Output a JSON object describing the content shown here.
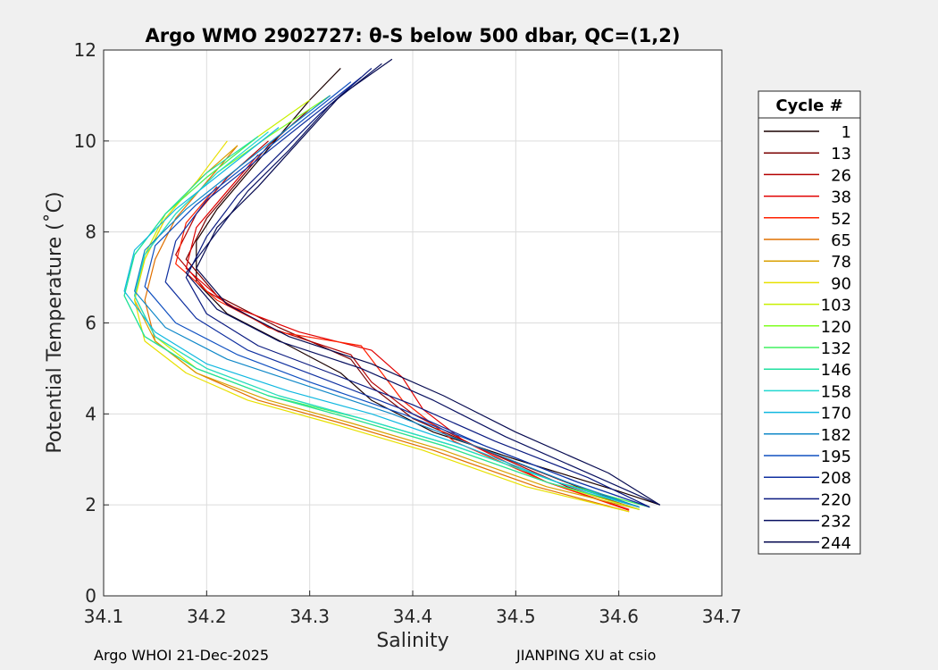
{
  "chart_data": {
    "type": "line",
    "title": "Argo WMO 2902727: θ-S below 500 dbar,  QC=(1,2)",
    "xlabel": "Salinity",
    "ylabel": "Potential Temperature (˚C)",
    "xlim": [
      34.1,
      34.7
    ],
    "ylim": [
      0,
      12
    ],
    "xticks": [
      34.1,
      34.2,
      34.3,
      34.4,
      34.5,
      34.6,
      34.7
    ],
    "yticks": [
      0,
      2,
      4,
      6,
      8,
      10,
      12
    ],
    "xtick_labels": [
      "34.1",
      "34.2",
      "34.3",
      "34.4",
      "34.5",
      "34.6",
      "34.7"
    ],
    "ytick_labels": [
      "0",
      "2",
      "4",
      "6",
      "8",
      "10",
      "12"
    ],
    "grid": true,
    "legend": {
      "title": "Cycle #",
      "placement": "outside-right",
      "entries": [
        {
          "label": "1",
          "color": "#1a0000"
        },
        {
          "label": "13",
          "color": "#7a0000"
        },
        {
          "label": "26",
          "color": "#b30000"
        },
        {
          "label": "38",
          "color": "#e00000"
        },
        {
          "label": "52",
          "color": "#ff2000"
        },
        {
          "label": "65",
          "color": "#e07000"
        },
        {
          "label": "78",
          "color": "#d9a000"
        },
        {
          "label": "90",
          "color": "#e8e000"
        },
        {
          "label": "103",
          "color": "#c8f000"
        },
        {
          "label": "120",
          "color": "#7fff20"
        },
        {
          "label": "132",
          "color": "#40f060"
        },
        {
          "label": "146",
          "color": "#20e0a0"
        },
        {
          "label": "158",
          "color": "#20d8d0"
        },
        {
          "label": "170",
          "color": "#10b8e0"
        },
        {
          "label": "182",
          "color": "#1088c8"
        },
        {
          "label": "195",
          "color": "#1050c0"
        },
        {
          "label": "208",
          "color": "#1030a0"
        },
        {
          "label": "220",
          "color": "#0a1a80"
        },
        {
          "label": "232",
          "color": "#081060"
        },
        {
          "label": "244",
          "color": "#060a50"
        }
      ]
    },
    "series": [
      {
        "name": "cycle 1",
        "color": "#1a0000",
        "points": [
          [
            34.64,
            2.0
          ],
          [
            34.6,
            2.3
          ],
          [
            34.5,
            3.0
          ],
          [
            34.42,
            3.6
          ],
          [
            34.36,
            4.3
          ],
          [
            34.33,
            4.9
          ],
          [
            34.28,
            5.5
          ],
          [
            34.22,
            6.2
          ],
          [
            34.19,
            6.9
          ],
          [
            34.19,
            7.8
          ],
          [
            34.21,
            8.5
          ],
          [
            34.24,
            9.3
          ],
          [
            34.27,
            10.1
          ],
          [
            34.3,
            10.9
          ],
          [
            34.33,
            11.6
          ]
        ]
      },
      {
        "name": "cycle 13",
        "color": "#7a0000",
        "points": [
          [
            34.62,
            1.95
          ],
          [
            34.56,
            2.4
          ],
          [
            34.47,
            3.2
          ],
          [
            34.4,
            3.9
          ],
          [
            34.36,
            4.6
          ],
          [
            34.34,
            5.2
          ],
          [
            34.27,
            5.9
          ],
          [
            34.21,
            6.6
          ],
          [
            34.18,
            7.4
          ],
          [
            34.2,
            8.3
          ],
          [
            34.23,
            9.1
          ],
          [
            34.26,
            9.9
          ],
          [
            34.3,
            10.7
          ]
        ]
      },
      {
        "name": "cycle 26",
        "color": "#b30000",
        "points": [
          [
            34.62,
            1.9
          ],
          [
            34.55,
            2.4
          ],
          [
            34.46,
            3.3
          ],
          [
            34.4,
            4.0
          ],
          [
            34.36,
            4.7
          ],
          [
            34.34,
            5.3
          ],
          [
            34.26,
            5.9
          ],
          [
            34.2,
            6.7
          ],
          [
            34.17,
            7.5
          ],
          [
            34.19,
            8.4
          ],
          [
            34.22,
            9.2
          ],
          [
            34.26,
            10.0
          ]
        ]
      },
      {
        "name": "cycle 38",
        "color": "#e00000",
        "points": [
          [
            34.61,
            1.9
          ],
          [
            34.53,
            2.5
          ],
          [
            34.45,
            3.4
          ],
          [
            34.41,
            4.1
          ],
          [
            34.39,
            4.8
          ],
          [
            34.36,
            5.4
          ],
          [
            34.29,
            5.8
          ],
          [
            34.22,
            6.4
          ],
          [
            34.18,
            7.2
          ],
          [
            34.19,
            8.1
          ],
          [
            34.22,
            8.9
          ],
          [
            34.25,
            9.7
          ]
        ]
      },
      {
        "name": "cycle 52",
        "color": "#ff2000",
        "points": [
          [
            34.61,
            1.88
          ],
          [
            34.53,
            2.5
          ],
          [
            34.44,
            3.4
          ],
          [
            34.39,
            4.3
          ],
          [
            34.37,
            4.9
          ],
          [
            34.35,
            5.5
          ],
          [
            34.27,
            5.8
          ],
          [
            34.21,
            6.5
          ],
          [
            34.17,
            7.3
          ],
          [
            34.18,
            8.2
          ],
          [
            34.21,
            9.0
          ]
        ]
      },
      {
        "name": "cycle 65",
        "color": "#e07000",
        "points": [
          [
            34.61,
            1.85
          ],
          [
            34.52,
            2.4
          ],
          [
            34.42,
            3.2
          ],
          [
            34.33,
            3.8
          ],
          [
            34.25,
            4.3
          ],
          [
            34.19,
            4.9
          ],
          [
            34.15,
            5.6
          ],
          [
            34.14,
            6.5
          ],
          [
            34.15,
            7.4
          ],
          [
            34.17,
            8.3
          ],
          [
            34.2,
            9.1
          ],
          [
            34.23,
            9.9
          ]
        ]
      },
      {
        "name": "cycle 78",
        "color": "#d9a000",
        "points": [
          [
            34.62,
            1.9
          ],
          [
            34.53,
            2.4
          ],
          [
            34.43,
            3.2
          ],
          [
            34.34,
            3.8
          ],
          [
            34.26,
            4.3
          ],
          [
            34.19,
            4.9
          ],
          [
            34.15,
            5.6
          ],
          [
            34.13,
            6.5
          ],
          [
            34.14,
            7.4
          ],
          [
            34.16,
            8.3
          ],
          [
            34.19,
            9.1
          ],
          [
            34.23,
            9.9
          ]
        ]
      },
      {
        "name": "cycle 90",
        "color": "#e8e000",
        "points": [
          [
            34.61,
            1.85
          ],
          [
            34.51,
            2.4
          ],
          [
            34.41,
            3.2
          ],
          [
            34.32,
            3.8
          ],
          [
            34.24,
            4.3
          ],
          [
            34.18,
            4.9
          ],
          [
            34.14,
            5.6
          ],
          [
            34.13,
            6.5
          ],
          [
            34.14,
            7.4
          ],
          [
            34.16,
            8.3
          ],
          [
            34.19,
            9.1
          ],
          [
            34.22,
            10.0
          ]
        ]
      },
      {
        "name": "cycle 103",
        "color": "#c8f000",
        "points": [
          [
            34.62,
            1.9
          ],
          [
            34.53,
            2.5
          ],
          [
            34.43,
            3.3
          ],
          [
            34.34,
            3.9
          ],
          [
            34.26,
            4.4
          ],
          [
            34.19,
            5.0
          ],
          [
            34.15,
            5.7
          ],
          [
            34.13,
            6.6
          ],
          [
            34.14,
            7.5
          ],
          [
            34.16,
            8.4
          ],
          [
            34.2,
            9.2
          ],
          [
            34.25,
            10.1
          ],
          [
            34.3,
            10.9
          ]
        ]
      },
      {
        "name": "cycle 120",
        "color": "#7fff20",
        "points": [
          [
            34.63,
            1.95
          ],
          [
            34.54,
            2.5
          ],
          [
            34.44,
            3.3
          ],
          [
            34.35,
            3.9
          ],
          [
            34.27,
            4.4
          ],
          [
            34.2,
            5.0
          ],
          [
            34.15,
            5.7
          ],
          [
            34.13,
            6.6
          ],
          [
            34.14,
            7.5
          ],
          [
            34.17,
            8.4
          ],
          [
            34.21,
            9.3
          ],
          [
            34.26,
            10.1
          ],
          [
            34.32,
            11.0
          ]
        ]
      },
      {
        "name": "cycle 132",
        "color": "#40f060",
        "points": [
          [
            34.63,
            1.95
          ],
          [
            34.54,
            2.5
          ],
          [
            34.44,
            3.3
          ],
          [
            34.35,
            3.9
          ],
          [
            34.26,
            4.4
          ],
          [
            34.19,
            5.0
          ],
          [
            34.14,
            5.7
          ],
          [
            34.12,
            6.6
          ],
          [
            34.13,
            7.5
          ],
          [
            34.16,
            8.4
          ],
          [
            34.2,
            9.2
          ],
          [
            34.25,
            10.1
          ]
        ]
      },
      {
        "name": "cycle 146",
        "color": "#20e0a0",
        "points": [
          [
            34.62,
            1.95
          ],
          [
            34.53,
            2.5
          ],
          [
            34.43,
            3.3
          ],
          [
            34.34,
            3.9
          ],
          [
            34.26,
            4.4
          ],
          [
            34.19,
            5.0
          ],
          [
            34.14,
            5.7
          ],
          [
            34.12,
            6.6
          ],
          [
            34.13,
            7.5
          ],
          [
            34.16,
            8.4
          ],
          [
            34.2,
            9.3
          ],
          [
            34.25,
            10.1
          ]
        ]
      },
      {
        "name": "cycle 158",
        "color": "#20d8d0",
        "points": [
          [
            34.62,
            1.95
          ],
          [
            34.54,
            2.5
          ],
          [
            34.44,
            3.3
          ],
          [
            34.35,
            3.9
          ],
          [
            34.27,
            4.4
          ],
          [
            34.2,
            5.0
          ],
          [
            34.15,
            5.7
          ],
          [
            34.13,
            6.6
          ],
          [
            34.14,
            7.5
          ],
          [
            34.17,
            8.4
          ],
          [
            34.21,
            9.3
          ],
          [
            34.26,
            10.2
          ]
        ]
      },
      {
        "name": "cycle 170",
        "color": "#10b8e0",
        "points": [
          [
            34.62,
            1.95
          ],
          [
            34.54,
            2.5
          ],
          [
            34.45,
            3.3
          ],
          [
            34.36,
            4.0
          ],
          [
            34.28,
            4.5
          ],
          [
            34.2,
            5.1
          ],
          [
            34.15,
            5.8
          ],
          [
            34.12,
            6.7
          ],
          [
            34.13,
            7.6
          ],
          [
            34.17,
            8.5
          ],
          [
            34.22,
            9.4
          ],
          [
            34.27,
            10.3
          ]
        ]
      },
      {
        "name": "cycle 182",
        "color": "#1088c8",
        "points": [
          [
            34.62,
            1.95
          ],
          [
            34.55,
            2.5
          ],
          [
            34.46,
            3.3
          ],
          [
            34.38,
            4.0
          ],
          [
            34.3,
            4.6
          ],
          [
            34.22,
            5.2
          ],
          [
            34.16,
            5.9
          ],
          [
            34.13,
            6.7
          ],
          [
            34.14,
            7.6
          ],
          [
            34.18,
            8.5
          ],
          [
            34.23,
            9.4
          ],
          [
            34.28,
            10.3
          ],
          [
            34.32,
            11.0
          ]
        ]
      },
      {
        "name": "cycle 195",
        "color": "#1050c0",
        "points": [
          [
            34.63,
            1.95
          ],
          [
            34.56,
            2.5
          ],
          [
            34.47,
            3.3
          ],
          [
            34.39,
            4.0
          ],
          [
            34.3,
            4.7
          ],
          [
            34.23,
            5.3
          ],
          [
            34.17,
            6.0
          ],
          [
            34.14,
            6.8
          ],
          [
            34.15,
            7.7
          ],
          [
            34.19,
            8.6
          ],
          [
            34.24,
            9.5
          ],
          [
            34.29,
            10.4
          ],
          [
            34.34,
            11.3
          ]
        ]
      },
      {
        "name": "cycle 208",
        "color": "#1030a0",
        "points": [
          [
            34.63,
            1.95
          ],
          [
            34.56,
            2.5
          ],
          [
            34.47,
            3.3
          ],
          [
            34.39,
            4.1
          ],
          [
            34.31,
            4.8
          ],
          [
            34.24,
            5.4
          ],
          [
            34.19,
            6.1
          ],
          [
            34.16,
            6.9
          ],
          [
            34.17,
            7.8
          ],
          [
            34.2,
            8.7
          ],
          [
            34.25,
            9.6
          ],
          [
            34.3,
            10.5
          ],
          [
            34.35,
            11.4
          ]
        ]
      },
      {
        "name": "cycle 220",
        "color": "#0a1a80",
        "points": [
          [
            34.63,
            1.95
          ],
          [
            34.57,
            2.6
          ],
          [
            34.48,
            3.4
          ],
          [
            34.4,
            4.2
          ],
          [
            34.32,
            4.9
          ],
          [
            34.25,
            5.5
          ],
          [
            34.2,
            6.2
          ],
          [
            34.18,
            7.0
          ],
          [
            34.2,
            7.9
          ],
          [
            34.23,
            8.8
          ],
          [
            34.27,
            9.7
          ],
          [
            34.31,
            10.6
          ],
          [
            34.36,
            11.6
          ]
        ]
      },
      {
        "name": "cycle 232",
        "color": "#081060",
        "points": [
          [
            34.64,
            2.0
          ],
          [
            34.58,
            2.6
          ],
          [
            34.49,
            3.5
          ],
          [
            34.42,
            4.3
          ],
          [
            34.35,
            5.0
          ],
          [
            34.27,
            5.6
          ],
          [
            34.21,
            6.3
          ],
          [
            34.18,
            7.1
          ],
          [
            34.21,
            8.0
          ],
          [
            34.24,
            8.9
          ],
          [
            34.28,
            9.8
          ],
          [
            34.32,
            10.8
          ],
          [
            34.37,
            11.7
          ]
        ]
      },
      {
        "name": "cycle 244",
        "color": "#060a50",
        "points": [
          [
            34.64,
            2.0
          ],
          [
            34.59,
            2.7
          ],
          [
            34.5,
            3.6
          ],
          [
            34.43,
            4.4
          ],
          [
            34.36,
            5.1
          ],
          [
            34.28,
            5.7
          ],
          [
            34.22,
            6.4
          ],
          [
            34.19,
            7.2
          ],
          [
            34.21,
            8.1
          ],
          [
            34.25,
            9.0
          ],
          [
            34.29,
            10.0
          ],
          [
            34.33,
            11.0
          ],
          [
            34.38,
            11.8
          ]
        ]
      }
    ]
  },
  "footer": {
    "left": "Argo WHOI 21-Dec-2025",
    "right": "JIANPING XU at csio"
  }
}
